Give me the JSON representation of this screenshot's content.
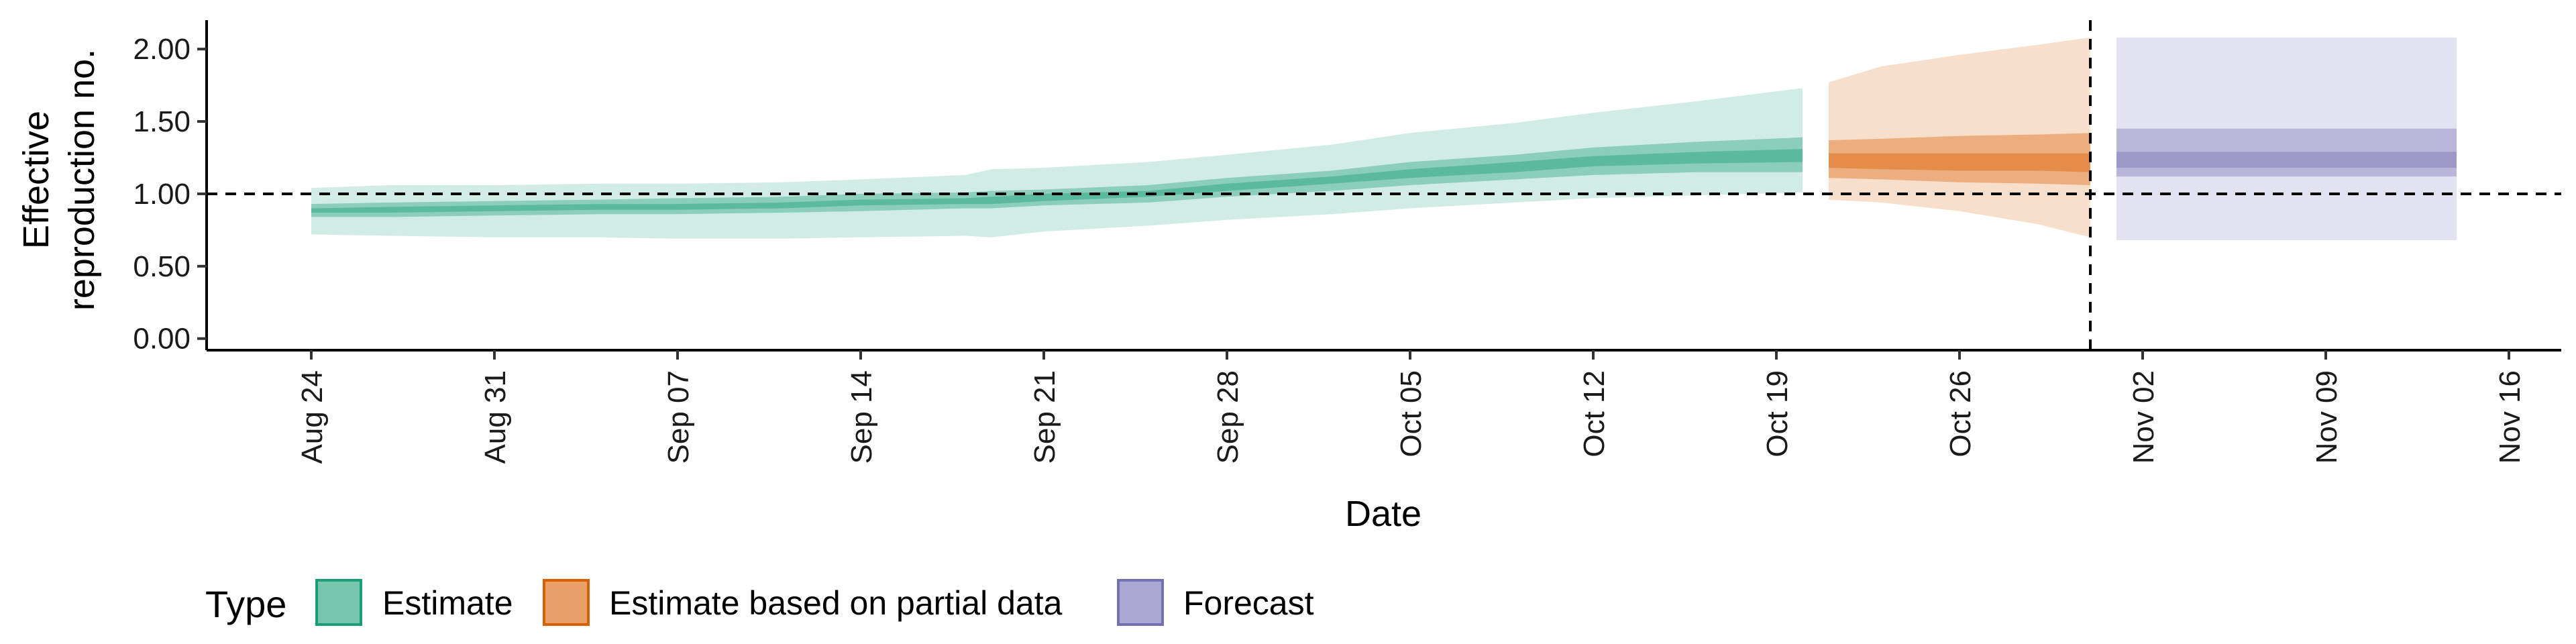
{
  "chart_data": {
    "type": "area",
    "title": "",
    "xlabel": "Date",
    "ylabel_lines": [
      "Effective",
      "reproduction no."
    ],
    "y_ticks": [
      {
        "value": 0.0,
        "label": "0.00"
      },
      {
        "value": 0.5,
        "label": "0.50"
      },
      {
        "value": 1.0,
        "label": "1.00"
      },
      {
        "value": 1.5,
        "label": "1.50"
      },
      {
        "value": 2.0,
        "label": "2.00"
      }
    ],
    "x_ticks": [
      {
        "date": "2020-08-24",
        "label": "Aug 24"
      },
      {
        "date": "2020-08-31",
        "label": "Aug 31"
      },
      {
        "date": "2020-09-07",
        "label": "Sep 07"
      },
      {
        "date": "2020-09-14",
        "label": "Sep 14"
      },
      {
        "date": "2020-09-21",
        "label": "Sep 21"
      },
      {
        "date": "2020-09-28",
        "label": "Sep 28"
      },
      {
        "date": "2020-10-05",
        "label": "Oct 05"
      },
      {
        "date": "2020-10-12",
        "label": "Oct 12"
      },
      {
        "date": "2020-10-19",
        "label": "Oct 19"
      },
      {
        "date": "2020-10-26",
        "label": "Oct 26"
      },
      {
        "date": "2020-11-02",
        "label": "Nov 02"
      },
      {
        "date": "2020-11-09",
        "label": "Nov 09"
      },
      {
        "date": "2020-11-16",
        "label": "Nov 16"
      }
    ],
    "xlim": [
      "2020-08-20",
      "2020-11-18"
    ],
    "ylim": [
      -0.08,
      2.2
    ],
    "reference_hline": 1.0,
    "reference_vline": "2020-10-31",
    "grid": false,
    "legend": {
      "title": "Type",
      "position": "bottom",
      "entries": [
        "Estimate",
        "Estimate based on partial data",
        "Forecast"
      ]
    },
    "series": [
      {
        "name": "Estimate",
        "fill": "#1b9e77",
        "border": "#1b9e77",
        "points": [
          {
            "x": "2020-08-24",
            "lo90": 0.72,
            "lo50": 0.84,
            "lo20": 0.87,
            "hi20": 0.9,
            "hi50": 0.93,
            "hi90": 1.04
          },
          {
            "x": "2020-08-27",
            "lo90": 0.71,
            "lo50": 0.84,
            "lo20": 0.87,
            "hi20": 0.91,
            "hi50": 0.94,
            "hi90": 1.06
          },
          {
            "x": "2020-08-31",
            "lo90": 0.7,
            "lo50": 0.85,
            "lo20": 0.88,
            "hi20": 0.92,
            "hi50": 0.95,
            "hi90": 1.06
          },
          {
            "x": "2020-09-04",
            "lo90": 0.7,
            "lo50": 0.86,
            "lo20": 0.89,
            "hi20": 0.93,
            "hi50": 0.96,
            "hi90": 1.07
          },
          {
            "x": "2020-09-07",
            "lo90": 0.69,
            "lo50": 0.86,
            "lo20": 0.89,
            "hi20": 0.93,
            "hi50": 0.97,
            "hi90": 1.07
          },
          {
            "x": "2020-09-11",
            "lo90": 0.69,
            "lo50": 0.87,
            "lo20": 0.9,
            "hi20": 0.94,
            "hi50": 0.98,
            "hi90": 1.08
          },
          {
            "x": "2020-09-14",
            "lo90": 0.7,
            "lo50": 0.88,
            "lo20": 0.92,
            "hi20": 0.96,
            "hi50": 1.0,
            "hi90": 1.1
          },
          {
            "x": "2020-09-18",
            "lo90": 0.71,
            "lo50": 0.9,
            "lo20": 0.93,
            "hi20": 0.97,
            "hi50": 1.01,
            "hi90": 1.13
          },
          {
            "x": "2020-09-19",
            "lo90": 0.7,
            "lo50": 0.9,
            "lo20": 0.93,
            "hi20": 0.98,
            "hi50": 1.02,
            "hi90": 1.17
          },
          {
            "x": "2020-09-21",
            "lo90": 0.74,
            "lo50": 0.92,
            "lo20": 0.95,
            "hi20": 1.0,
            "hi50": 1.03,
            "hi90": 1.18
          },
          {
            "x": "2020-09-25",
            "lo90": 0.78,
            "lo50": 0.94,
            "lo20": 0.98,
            "hi20": 1.02,
            "hi50": 1.06,
            "hi90": 1.22
          },
          {
            "x": "2020-09-28",
            "lo90": 0.82,
            "lo50": 0.98,
            "lo20": 1.02,
            "hi20": 1.07,
            "hi50": 1.11,
            "hi90": 1.27
          },
          {
            "x": "2020-10-02",
            "lo90": 0.86,
            "lo50": 1.02,
            "lo20": 1.07,
            "hi20": 1.12,
            "hi50": 1.16,
            "hi90": 1.34
          },
          {
            "x": "2020-10-05",
            "lo90": 0.9,
            "lo50": 1.06,
            "lo20": 1.11,
            "hi20": 1.17,
            "hi50": 1.22,
            "hi90": 1.42
          },
          {
            "x": "2020-10-09",
            "lo90": 0.94,
            "lo50": 1.1,
            "lo20": 1.15,
            "hi20": 1.22,
            "hi50": 1.27,
            "hi90": 1.49
          },
          {
            "x": "2020-10-12",
            "lo90": 0.97,
            "lo50": 1.13,
            "lo20": 1.19,
            "hi20": 1.26,
            "hi50": 1.32,
            "hi90": 1.56
          },
          {
            "x": "2020-10-16",
            "lo90": 0.99,
            "lo50": 1.15,
            "lo20": 1.21,
            "hi20": 1.29,
            "hi50": 1.36,
            "hi90": 1.64
          },
          {
            "x": "2020-10-20",
            "lo90": 1.01,
            "lo50": 1.15,
            "lo20": 1.22,
            "hi20": 1.31,
            "hi50": 1.39,
            "hi90": 1.73
          }
        ]
      },
      {
        "name": "Estimate based on partial data",
        "fill": "#d95f02",
        "border": "#d95f02",
        "points": [
          {
            "x": "2020-10-21",
            "lo90": 0.96,
            "lo50": 1.11,
            "lo20": 1.18,
            "hi20": 1.28,
            "hi50": 1.37,
            "hi90": 1.77
          },
          {
            "x": "2020-10-23",
            "lo90": 0.94,
            "lo50": 1.1,
            "lo20": 1.17,
            "hi20": 1.28,
            "hi50": 1.38,
            "hi90": 1.88
          },
          {
            "x": "2020-10-26",
            "lo90": 0.88,
            "lo50": 1.08,
            "lo20": 1.16,
            "hi20": 1.28,
            "hi50": 1.4,
            "hi90": 1.96
          },
          {
            "x": "2020-10-29",
            "lo90": 0.79,
            "lo50": 1.07,
            "lo20": 1.16,
            "hi20": 1.28,
            "hi50": 1.41,
            "hi90": 2.03
          },
          {
            "x": "2020-10-31",
            "lo90": 0.7,
            "lo50": 1.06,
            "lo20": 1.15,
            "hi20": 1.28,
            "hi50": 1.42,
            "hi90": 2.08
          }
        ]
      },
      {
        "name": "Forecast",
        "fill": "#7570b3",
        "border": "#7570b3",
        "points": [
          {
            "x": "2020-11-01",
            "lo90": 0.68,
            "lo50": 1.12,
            "lo20": 1.18,
            "hi20": 1.29,
            "hi50": 1.45,
            "hi90": 2.08
          },
          {
            "x": "2020-11-14",
            "lo90": 0.68,
            "lo50": 1.12,
            "lo20": 1.18,
            "hi20": 1.29,
            "hi50": 1.45,
            "hi90": 2.08
          }
        ]
      }
    ]
  }
}
